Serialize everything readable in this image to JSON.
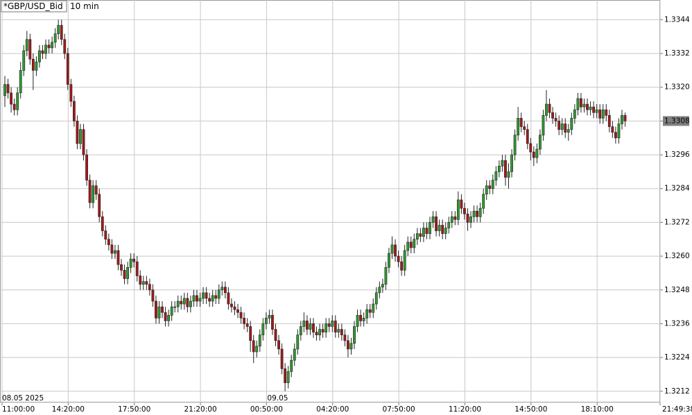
{
  "chart_data": {
    "type": "candlestick",
    "symbol": "*GBP/USD_Bid",
    "interval": "10 min",
    "up_color": "#2f9a2f",
    "down_color": "#a3191b",
    "grid": true,
    "ylim": [
      1.3208,
      1.3351
    ],
    "yticks": [
      1.3212,
      1.3224,
      1.3236,
      1.3248,
      {
        "value": 1.326,
        "label": "1.3260"
      },
      1.3272,
      1.3284,
      1.3296,
      1.3308,
      {
        "value": 1.332,
        "label": "1.3320"
      },
      1.3332,
      1.3344
    ],
    "xlim": [
      0,
      209
    ],
    "xticks": [
      {
        "value": 0,
        "label": "11:00:00"
      },
      {
        "value": 21,
        "label": "14:20:00"
      },
      {
        "value": 42,
        "label": "17:50:00"
      },
      {
        "value": 63,
        "label": "21:20:00"
      },
      {
        "value": 84,
        "label": "00:50:00"
      },
      {
        "value": 105,
        "label": "04:20:00"
      },
      {
        "value": 126,
        "label": "07:50:00"
      },
      {
        "value": 147,
        "label": "11:20:00"
      },
      {
        "value": 168,
        "label": "14:50:00"
      },
      {
        "value": 189,
        "label": "18:10:00"
      },
      {
        "value": 209,
        "label": "21:49:38"
      }
    ],
    "date_labels": [
      {
        "value": 0,
        "label": "08.05 2025"
      },
      {
        "value": 84,
        "label": "09.05"
      }
    ],
    "open": [
      1.3317,
      1.3321,
      1.3318,
      1.3314,
      1.3312,
      1.3318,
      1.3326,
      1.3333,
      1.3337,
      1.333,
      1.3326,
      1.3329,
      1.3333,
      1.3332,
      1.3335,
      1.3334,
      1.3336,
      1.3339,
      1.3342,
      1.3337,
      1.3332,
      1.3321,
      1.3315,
      1.3308,
      1.33,
      1.3305,
      1.3296,
      1.3287,
      1.3279,
      1.3285,
      1.3282,
      1.3274,
      1.3269,
      1.3266,
      1.3264,
      1.3261,
      1.3262,
      1.3257,
      1.3255,
      1.3252,
      1.3256,
      1.3259,
      1.3258,
      1.3253,
      1.325,
      1.3251,
      1.325,
      1.3248,
      1.3244,
      1.3238,
      1.3242,
      1.324,
      1.3237,
      1.3239,
      1.3242,
      1.3242,
      1.3244,
      1.3243,
      1.3245,
      1.3242,
      1.3244,
      1.3246,
      1.3244,
      1.3245,
      1.3247,
      1.3245,
      1.3244,
      1.3246,
      1.3245,
      1.3248,
      1.3249,
      1.3247,
      1.3243,
      1.3242,
      1.3241,
      1.324,
      1.3238,
      1.3236,
      1.3235,
      1.323,
      1.3226,
      1.3228,
      1.3232,
      1.3236,
      1.3238,
      1.3239,
      1.3234,
      1.323,
      1.3227,
      1.322,
      1.3215,
      1.3219,
      1.3223,
      1.3227,
      1.3232,
      1.3235,
      1.3237,
      1.3234,
      1.3236,
      1.3233,
      1.3232,
      1.3234,
      1.3233,
      1.3236,
      1.3235,
      1.3237,
      1.3233,
      1.3234,
      1.3232,
      1.323,
      1.3227,
      1.3229,
      1.3235,
      1.3239,
      1.3237,
      1.3238,
      1.3241,
      1.324,
      1.3243,
      1.3247,
      1.3249,
      1.325,
      1.3256,
      1.3261,
      1.3264,
      1.326,
      1.3258,
      1.3255,
      1.3262,
      1.3265,
      1.3263,
      1.3266,
      1.3268,
      1.3267,
      1.327,
      1.3268,
      1.3272,
      1.3274,
      1.3269,
      1.3271,
      1.3268,
      1.327,
      1.3272,
      1.3274,
      1.3273,
      1.328,
      1.3277,
      1.3275,
      1.3272,
      1.3274,
      1.3276,
      1.3274,
      1.3277,
      1.3282,
      1.3285,
      1.3284,
      1.3287,
      1.329,
      1.3292,
      1.3294,
      1.3288,
      1.329,
      1.3296,
      1.3303,
      1.3309,
      1.3306,
      1.3305,
      1.33,
      1.3297,
      1.3295,
      1.3298,
      1.3303,
      1.331,
      1.3314,
      1.3311,
      1.3309,
      1.3308,
      1.3305,
      1.3307,
      1.3304,
      1.3305,
      1.3309,
      1.3312,
      1.3316,
      1.3313,
      1.3314,
      1.3312,
      1.3313,
      1.3311,
      1.3312,
      1.3309,
      1.3312,
      1.331,
      1.3306,
      1.3304,
      1.3302,
      1.3307,
      1.331
    ],
    "high": [
      1.3324,
      1.3323,
      1.332,
      1.3316,
      1.332,
      1.3329,
      1.3335,
      1.334,
      1.3339,
      1.3332,
      1.3331,
      1.3335,
      1.3335,
      1.3337,
      1.3337,
      1.3338,
      1.3341,
      1.3344,
      1.3344,
      1.3339,
      1.3334,
      1.3323,
      1.3317,
      1.331,
      1.3307,
      1.3307,
      1.3298,
      1.3289,
      1.3287,
      1.3287,
      1.3284,
      1.3276,
      1.3271,
      1.3268,
      1.3266,
      1.3264,
      1.3264,
      1.3259,
      1.3257,
      1.3258,
      1.3261,
      1.3261,
      1.326,
      1.3255,
      1.3253,
      1.3253,
      1.3252,
      1.325,
      1.3246,
      1.3244,
      1.3244,
      1.3242,
      1.3241,
      1.3244,
      1.3244,
      1.3246,
      1.3246,
      1.3247,
      1.3247,
      1.3246,
      1.3248,
      1.3248,
      1.3247,
      1.3249,
      1.3249,
      1.3247,
      1.3248,
      1.3248,
      1.325,
      1.3251,
      1.3251,
      1.3249,
      1.3245,
      1.3244,
      1.3243,
      1.3242,
      1.324,
      1.3238,
      1.3237,
      1.3232,
      1.323,
      1.3234,
      1.3238,
      1.324,
      1.3241,
      1.3241,
      1.3236,
      1.3232,
      1.3229,
      1.3222,
      1.3221,
      1.3225,
      1.3229,
      1.3234,
      1.3237,
      1.324,
      1.3239,
      1.3238,
      1.3238,
      1.3235,
      1.3236,
      1.3236,
      1.3238,
      1.3238,
      1.3239,
      1.3239,
      1.3236,
      1.3236,
      1.3234,
      1.3232,
      1.3231,
      1.3237,
      1.3241,
      1.3241,
      1.324,
      1.3243,
      1.3243,
      1.3245,
      1.3249,
      1.3251,
      1.3252,
      1.3258,
      1.3263,
      1.3267,
      1.3266,
      1.3262,
      1.326,
      1.3264,
      1.3267,
      1.3267,
      1.3268,
      1.327,
      1.327,
      1.3272,
      1.3272,
      1.3274,
      1.3276,
      1.3276,
      1.3273,
      1.3273,
      1.3272,
      1.3274,
      1.3276,
      1.3276,
      1.3283,
      1.3282,
      1.3279,
      1.3277,
      1.3276,
      1.3278,
      1.3278,
      1.3279,
      1.3284,
      1.3287,
      1.3287,
      1.3289,
      1.3292,
      1.3294,
      1.3296,
      1.3296,
      1.3293,
      1.3298,
      1.3305,
      1.3313,
      1.3311,
      1.3308,
      1.3307,
      1.3302,
      1.3299,
      1.33,
      1.3305,
      1.3312,
      1.3319,
      1.3316,
      1.3313,
      1.3311,
      1.331,
      1.3309,
      1.3309,
      1.3307,
      1.3311,
      1.3314,
      1.3318,
      1.3318,
      1.3316,
      1.3316,
      1.3315,
      1.3315,
      1.3314,
      1.3314,
      1.3314,
      1.3314,
      1.3312,
      1.3308,
      1.3306,
      1.3309,
      1.3312,
      1.3311
    ],
    "low": [
      1.3313,
      1.3316,
      1.3311,
      1.331,
      1.331,
      1.3316,
      1.3324,
      1.3331,
      1.3328,
      1.3319,
      1.3324,
      1.3327,
      1.333,
      1.333,
      1.3332,
      1.3332,
      1.3334,
      1.3337,
      1.3335,
      1.333,
      1.3319,
      1.3313,
      1.3306,
      1.3298,
      1.3298,
      1.3294,
      1.3285,
      1.3277,
      1.3277,
      1.328,
      1.3272,
      1.3267,
      1.3264,
      1.3262,
      1.3259,
      1.3259,
      1.3255,
      1.3253,
      1.325,
      1.325,
      1.3254,
      1.3256,
      1.3251,
      1.3248,
      1.3248,
      1.3248,
      1.3246,
      1.3242,
      1.3236,
      1.3236,
      1.3238,
      1.3235,
      1.3235,
      1.3237,
      1.324,
      1.324,
      1.3241,
      1.3241,
      1.324,
      1.324,
      1.3242,
      1.3242,
      1.3242,
      1.3243,
      1.3243,
      1.3242,
      1.3242,
      1.3243,
      1.3243,
      1.3246,
      1.3245,
      1.3241,
      1.324,
      1.3239,
      1.3238,
      1.3236,
      1.3234,
      1.3233,
      1.3226,
      1.3222,
      1.3224,
      1.3226,
      1.323,
      1.3234,
      1.3236,
      1.3232,
      1.3228,
      1.3225,
      1.3218,
      1.3212,
      1.3213,
      1.3217,
      1.3221,
      1.3225,
      1.323,
      1.3233,
      1.3232,
      1.3232,
      1.3231,
      1.323,
      1.323,
      1.3231,
      1.3231,
      1.3233,
      1.3233,
      1.3231,
      1.3231,
      1.323,
      1.3228,
      1.3224,
      1.3225,
      1.3227,
      1.3233,
      1.3235,
      1.3235,
      1.3236,
      1.3238,
      1.3238,
      1.3241,
      1.3245,
      1.3247,
      1.3248,
      1.3254,
      1.3259,
      1.3258,
      1.3256,
      1.3253,
      1.3253,
      1.326,
      1.3261,
      1.3261,
      1.3264,
      1.3265,
      1.3265,
      1.3266,
      1.3266,
      1.327,
      1.3267,
      1.3267,
      1.3266,
      1.3266,
      1.3268,
      1.327,
      1.3271,
      1.3271,
      1.3275,
      1.3273,
      1.3269,
      1.327,
      1.3272,
      1.3272,
      1.3272,
      1.3275,
      1.328,
      1.3282,
      1.3282,
      1.3285,
      1.3288,
      1.329,
      1.3285,
      1.3284,
      1.3288,
      1.3294,
      1.3301,
      1.3304,
      1.3303,
      1.3298,
      1.3294,
      1.3292,
      1.3293,
      1.3296,
      1.3301,
      1.3308,
      1.3309,
      1.3307,
      1.3306,
      1.3303,
      1.3303,
      1.3302,
      1.3301,
      1.3303,
      1.3307,
      1.331,
      1.3311,
      1.3311,
      1.331,
      1.331,
      1.3309,
      1.3309,
      1.3307,
      1.3307,
      1.3308,
      1.3304,
      1.3302,
      1.33,
      1.33,
      1.3305,
      1.3306
    ],
    "close": [
      1.3321,
      1.3318,
      1.3314,
      1.3312,
      1.3318,
      1.3326,
      1.3333,
      1.3337,
      1.333,
      1.3326,
      1.3329,
      1.3333,
      1.3332,
      1.3335,
      1.3334,
      1.3336,
      1.3339,
      1.3342,
      1.3337,
      1.3332,
      1.3321,
      1.3315,
      1.3308,
      1.33,
      1.3305,
      1.3296,
      1.3287,
      1.3279,
      1.3285,
      1.3282,
      1.3274,
      1.3269,
      1.3266,
      1.3264,
      1.3261,
      1.3262,
      1.3257,
      1.3255,
      1.3252,
      1.3256,
      1.3259,
      1.3258,
      1.3253,
      1.325,
      1.3251,
      1.325,
      1.3248,
      1.3244,
      1.3238,
      1.3242,
      1.324,
      1.3237,
      1.3239,
      1.3242,
      1.3242,
      1.3244,
      1.3243,
      1.3245,
      1.3242,
      1.3244,
      1.3246,
      1.3244,
      1.3245,
      1.3247,
      1.3245,
      1.3244,
      1.3246,
      1.3245,
      1.3248,
      1.3249,
      1.3247,
      1.3243,
      1.3242,
      1.3241,
      1.324,
      1.3238,
      1.3236,
      1.3235,
      1.323,
      1.3226,
      1.3228,
      1.3232,
      1.3236,
      1.3238,
      1.3239,
      1.3234,
      1.323,
      1.3227,
      1.322,
      1.3215,
      1.3219,
      1.3223,
      1.3227,
      1.3232,
      1.3235,
      1.3237,
      1.3234,
      1.3236,
      1.3233,
      1.3232,
      1.3234,
      1.3233,
      1.3236,
      1.3235,
      1.3237,
      1.3233,
      1.3234,
      1.3232,
      1.323,
      1.3227,
      1.3229,
      1.3235,
      1.3239,
      1.3237,
      1.3238,
      1.3241,
      1.324,
      1.3243,
      1.3247,
      1.3249,
      1.325,
      1.3256,
      1.3261,
      1.3264,
      1.326,
      1.3258,
      1.3255,
      1.3262,
      1.3265,
      1.3263,
      1.3266,
      1.3268,
      1.3267,
      1.327,
      1.3268,
      1.3272,
      1.3274,
      1.3269,
      1.3271,
      1.3268,
      1.327,
      1.3272,
      1.3274,
      1.3273,
      1.328,
      1.3277,
      1.3275,
      1.3272,
      1.3274,
      1.3276,
      1.3274,
      1.3277,
      1.3282,
      1.3285,
      1.3284,
      1.3287,
      1.329,
      1.3292,
      1.3294,
      1.3288,
      1.329,
      1.3296,
      1.3303,
      1.3309,
      1.3306,
      1.3305,
      1.33,
      1.3297,
      1.3295,
      1.3298,
      1.3303,
      1.331,
      1.3314,
      1.3311,
      1.3309,
      1.3308,
      1.3305,
      1.3307,
      1.3304,
      1.3305,
      1.3309,
      1.3312,
      1.3316,
      1.3313,
      1.3314,
      1.3312,
      1.3313,
      1.3311,
      1.3312,
      1.3309,
      1.3312,
      1.331,
      1.3306,
      1.3304,
      1.3302,
      1.3307,
      1.331,
      1.3308
    ]
  }
}
